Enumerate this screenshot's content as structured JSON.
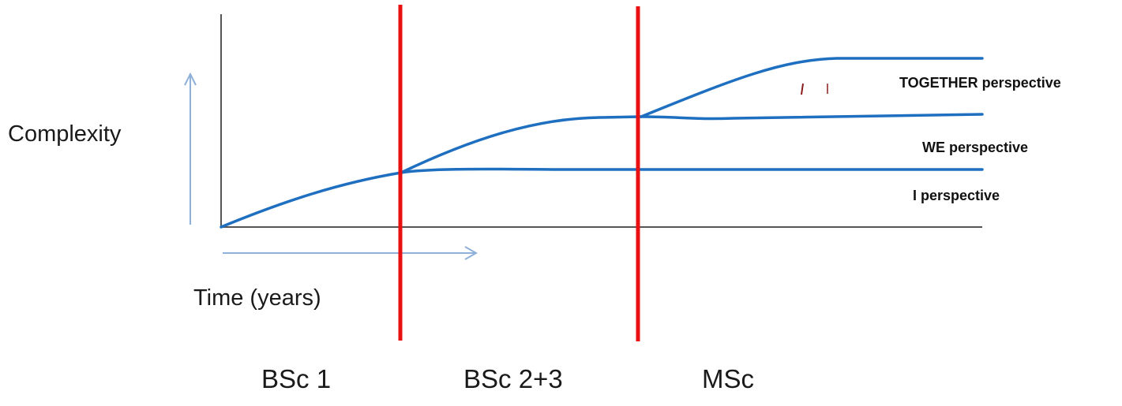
{
  "axes": {
    "y_label": "Complexity",
    "x_label": "Time (years)"
  },
  "curves": [
    {
      "label": "TOGETHER perspective"
    },
    {
      "label": "WE perspective"
    },
    {
      "label": "I perspective"
    }
  ],
  "phases": [
    {
      "label": "BSc 1"
    },
    {
      "label": "BSc 2+3"
    },
    {
      "label": "MSc"
    }
  ],
  "colors": {
    "curve": "#1f6fc0",
    "divider": "#e81010",
    "axis": "#555555",
    "arrow": "#8fb0d8",
    "bracket_marks": "#8a1a1a"
  }
}
